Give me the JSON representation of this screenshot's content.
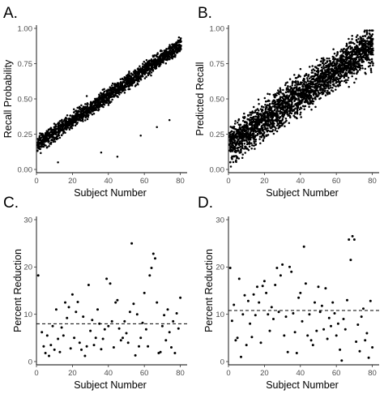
{
  "chart_data": [
    {
      "panel": "A.",
      "type": "scatter",
      "title": "",
      "xlabel": "Subject Number",
      "ylabel": "Recall Probability",
      "xlim": [
        0,
        82
      ],
      "ylim": [
        0,
        1
      ],
      "xticks": [
        0,
        20,
        40,
        60,
        80
      ],
      "yticks": [
        0.0,
        0.25,
        0.5,
        0.75,
        1.0
      ],
      "ytick_labels": [
        "0.00",
        "0.25",
        "0.50",
        "0.75",
        "1.00"
      ],
      "grid": false,
      "legend": "none",
      "trend": {
        "x_start": 1,
        "x_end": 80,
        "y_start": 0.18,
        "y_end": 0.88
      },
      "points_per_subject": 20,
      "spread": 0.05,
      "outliers": [
        [
          45,
          0.09
        ],
        [
          36,
          0.12
        ],
        [
          12,
          0.05
        ],
        [
          58,
          0.24
        ],
        [
          67,
          0.3
        ],
        [
          74,
          0.35
        ],
        [
          28,
          0.52
        ]
      ]
    },
    {
      "panel": "B.",
      "type": "scatter",
      "title": "",
      "xlabel": "Subject Number",
      "ylabel": "Predicted Recall",
      "xlim": [
        0,
        82
      ],
      "ylim": [
        0,
        1
      ],
      "xticks": [
        0,
        20,
        40,
        60,
        80
      ],
      "yticks": [
        0.0,
        0.25,
        0.5,
        0.75,
        1.0
      ],
      "ytick_labels": [
        "0.00",
        "0.25",
        "0.50",
        "0.75",
        "1.00"
      ],
      "grid": false,
      "legend": "none",
      "trend": {
        "x_start": 1,
        "x_end": 80,
        "y_start": 0.18,
        "y_end": 0.88
      },
      "points_per_subject": 32,
      "spread": 0.12,
      "outliers": []
    },
    {
      "panel": "C.",
      "type": "scatter",
      "title": "",
      "xlabel": "Subject Number",
      "ylabel": "Percent Reduction",
      "xlim": [
        0,
        82
      ],
      "ylim": [
        0,
        30
      ],
      "xticks": [
        0,
        20,
        40,
        60,
        80
      ],
      "yticks": [
        0,
        10,
        20,
        30
      ],
      "ytick_labels": [
        "0",
        "10",
        "20",
        "30"
      ],
      "grid": false,
      "legend": "none",
      "hline": 8.0,
      "x": [
        1,
        3,
        4,
        5,
        6,
        7,
        8,
        9,
        10,
        11,
        12,
        13,
        14,
        15,
        16,
        17,
        18,
        19,
        20,
        21,
        22,
        23,
        24,
        25,
        26,
        27,
        28,
        29,
        30,
        31,
        32,
        33,
        34,
        35,
        36,
        37,
        38,
        39,
        40,
        41,
        42,
        43,
        44,
        45,
        46,
        47,
        48,
        49,
        50,
        51,
        52,
        53,
        54,
        55,
        56,
        57,
        58,
        59,
        60,
        61,
        62,
        63,
        64,
        65,
        66,
        67,
        68,
        69,
        70,
        71,
        72,
        73,
        74,
        75,
        76,
        77,
        78,
        79,
        80
      ],
      "y": [
        18.2,
        6.2,
        3.2,
        1.8,
        5.5,
        1.2,
        3.5,
        7.5,
        2.5,
        11.0,
        4.8,
        2.0,
        7.2,
        5.5,
        12.5,
        9.2,
        11.5,
        2.8,
        14.2,
        5.0,
        10.5,
        12.6,
        4.0,
        2.5,
        9.5,
        1.2,
        3.2,
        16.2,
        6.5,
        8.8,
        3.5,
        5.0,
        11.0,
        8.0,
        2.6,
        4.8,
        6.8,
        17.5,
        7.5,
        16.5,
        8.5,
        3.0,
        12.5,
        13.0,
        7.0,
        4.5,
        5.0,
        8.5,
        6.0,
        4.0,
        10.5,
        25.0,
        12.2,
        1.3,
        10.0,
        3.2,
        5.0,
        8.2,
        14.5,
        6.8,
        3.2,
        18.2,
        19.8,
        22.8,
        21.8,
        12.5,
        1.8,
        2.0,
        7.5,
        9.8,
        4.5,
        11.0,
        6.2,
        3.0,
        8.5,
        1.8,
        10.2,
        7.0,
        13.5
      ]
    },
    {
      "panel": "D.",
      "type": "scatter",
      "title": "",
      "xlabel": "Subject Number",
      "ylabel": "Percent Reduction",
      "xlim": [
        0,
        82
      ],
      "ylim": [
        0,
        30
      ],
      "xticks": [
        0,
        20,
        40,
        60,
        80
      ],
      "yticks": [
        0,
        10,
        20,
        30
      ],
      "ytick_labels": [
        "0",
        "10",
        "20",
        "30"
      ],
      "grid": false,
      "legend": "none",
      "hline": 10.8,
      "x": [
        1,
        2,
        3,
        4,
        5,
        6,
        7,
        8,
        9,
        10,
        11,
        12,
        13,
        14,
        15,
        16,
        17,
        18,
        19,
        20,
        21,
        22,
        23,
        24,
        25,
        26,
        27,
        28,
        29,
        30,
        31,
        32,
        33,
        34,
        35,
        36,
        37,
        38,
        39,
        40,
        41,
        42,
        43,
        44,
        45,
        46,
        47,
        48,
        49,
        50,
        51,
        52,
        53,
        54,
        55,
        56,
        57,
        58,
        59,
        60,
        61,
        62,
        63,
        64,
        65,
        66,
        67,
        68,
        69,
        70,
        71,
        72,
        73,
        74,
        75,
        76,
        77,
        78,
        79,
        80
      ],
      "y": [
        19.8,
        8.6,
        12.0,
        4.5,
        5.0,
        17.5,
        1.0,
        10.0,
        14.0,
        3.5,
        12.8,
        8.0,
        5.2,
        14.2,
        9.8,
        15.8,
        12.5,
        4.0,
        16.0,
        17.0,
        14.5,
        10.0,
        6.5,
        11.5,
        9.0,
        16.2,
        19.8,
        10.5,
        18.2,
        20.5,
        5.5,
        9.5,
        2.0,
        20.0,
        19.0,
        10.2,
        6.2,
        1.8,
        13.5,
        14.5,
        8.5,
        24.3,
        16.5,
        5.5,
        10.0,
        4.5,
        3.5,
        12.5,
        6.5,
        15.8,
        10.5,
        11.8,
        6.8,
        15.5,
        4.8,
        9.2,
        7.5,
        12.5,
        10.2,
        5.5,
        8.0,
        2.5,
        0.2,
        9.0,
        6.8,
        13.0,
        25.8,
        21.5,
        26.5,
        25.8,
        4.2,
        7.8,
        2.2,
        9.5,
        11.2,
        4.5,
        6.0,
        0.8,
        12.8,
        3.0
      ]
    }
  ]
}
